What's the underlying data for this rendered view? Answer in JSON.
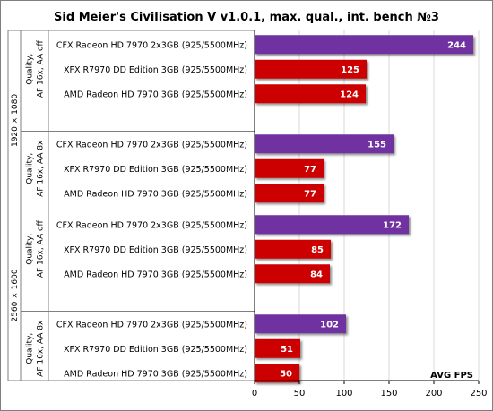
{
  "chart_data": {
    "type": "bar",
    "orientation": "horizontal",
    "title": "Sid Meier's Civilisation V v1.0.1, max. qual., int. bench №3",
    "axis_title": "AVG FPS",
    "xlim": [
      0,
      250
    ],
    "ticks": [
      "0",
      "50",
      "100",
      "150",
      "200",
      "250"
    ],
    "colors": {
      "cfx": "#7030a0",
      "single": "#cc0000"
    },
    "resolutions": [
      {
        "label": "1920 × 1080",
        "groups": [
          {
            "label_lines": [
              "Quality,",
              "AF 16x,  AA off"
            ],
            "bars": [
              {
                "label": "CFX Radeon HD 7970 2x3GB (925/5500MHz)",
                "value": 244,
                "color": "cfx"
              },
              {
                "label": "XFX R7970 DD Edition 3GB (925/5500MHz)",
                "value": 125,
                "color": "single"
              },
              {
                "label": "AMD Radeon HD 7970 3GB (925/5500MHz)",
                "value": 124,
                "color": "single"
              }
            ]
          },
          {
            "label_lines": [
              "Quality,",
              "AF 16x,  AA 8x"
            ],
            "bars": [
              {
                "label": "CFX Radeon HD 7970 2x3GB (925/5500MHz)",
                "value": 155,
                "color": "cfx"
              },
              {
                "label": "XFX R7970 DD Edition 3GB (925/5500MHz)",
                "value": 77,
                "color": "single"
              },
              {
                "label": "AMD Radeon HD 7970 3GB (925/5500MHz)",
                "value": 77,
                "color": "single"
              }
            ]
          }
        ]
      },
      {
        "label": "2560 × 1600",
        "groups": [
          {
            "label_lines": [
              "Quality,",
              "AF 16x,  AA off"
            ],
            "bars": [
              {
                "label": "CFX Radeon HD 7970 2x3GB (925/5500MHz)",
                "value": 172,
                "color": "cfx"
              },
              {
                "label": "XFX R7970 DD Edition 3GB (925/5500MHz)",
                "value": 85,
                "color": "single"
              },
              {
                "label": "AMD Radeon HD 7970 3GB (925/5500MHz)",
                "value": 84,
                "color": "single"
              }
            ]
          },
          {
            "label_lines": [
              "Quality,",
              "AF 16x,  AA 8x"
            ],
            "bars": [
              {
                "label": "CFX Radeon HD 7970 2x3GB (925/5500MHz)",
                "value": 102,
                "color": "cfx"
              },
              {
                "label": "XFX R7970 DD Edition 3GB (925/5500MHz)",
                "value": 51,
                "color": "single"
              },
              {
                "label": "AMD Radeon HD 7970 3GB (925/5500MHz)",
                "value": 50,
                "color": "single"
              }
            ]
          }
        ]
      }
    ]
  }
}
